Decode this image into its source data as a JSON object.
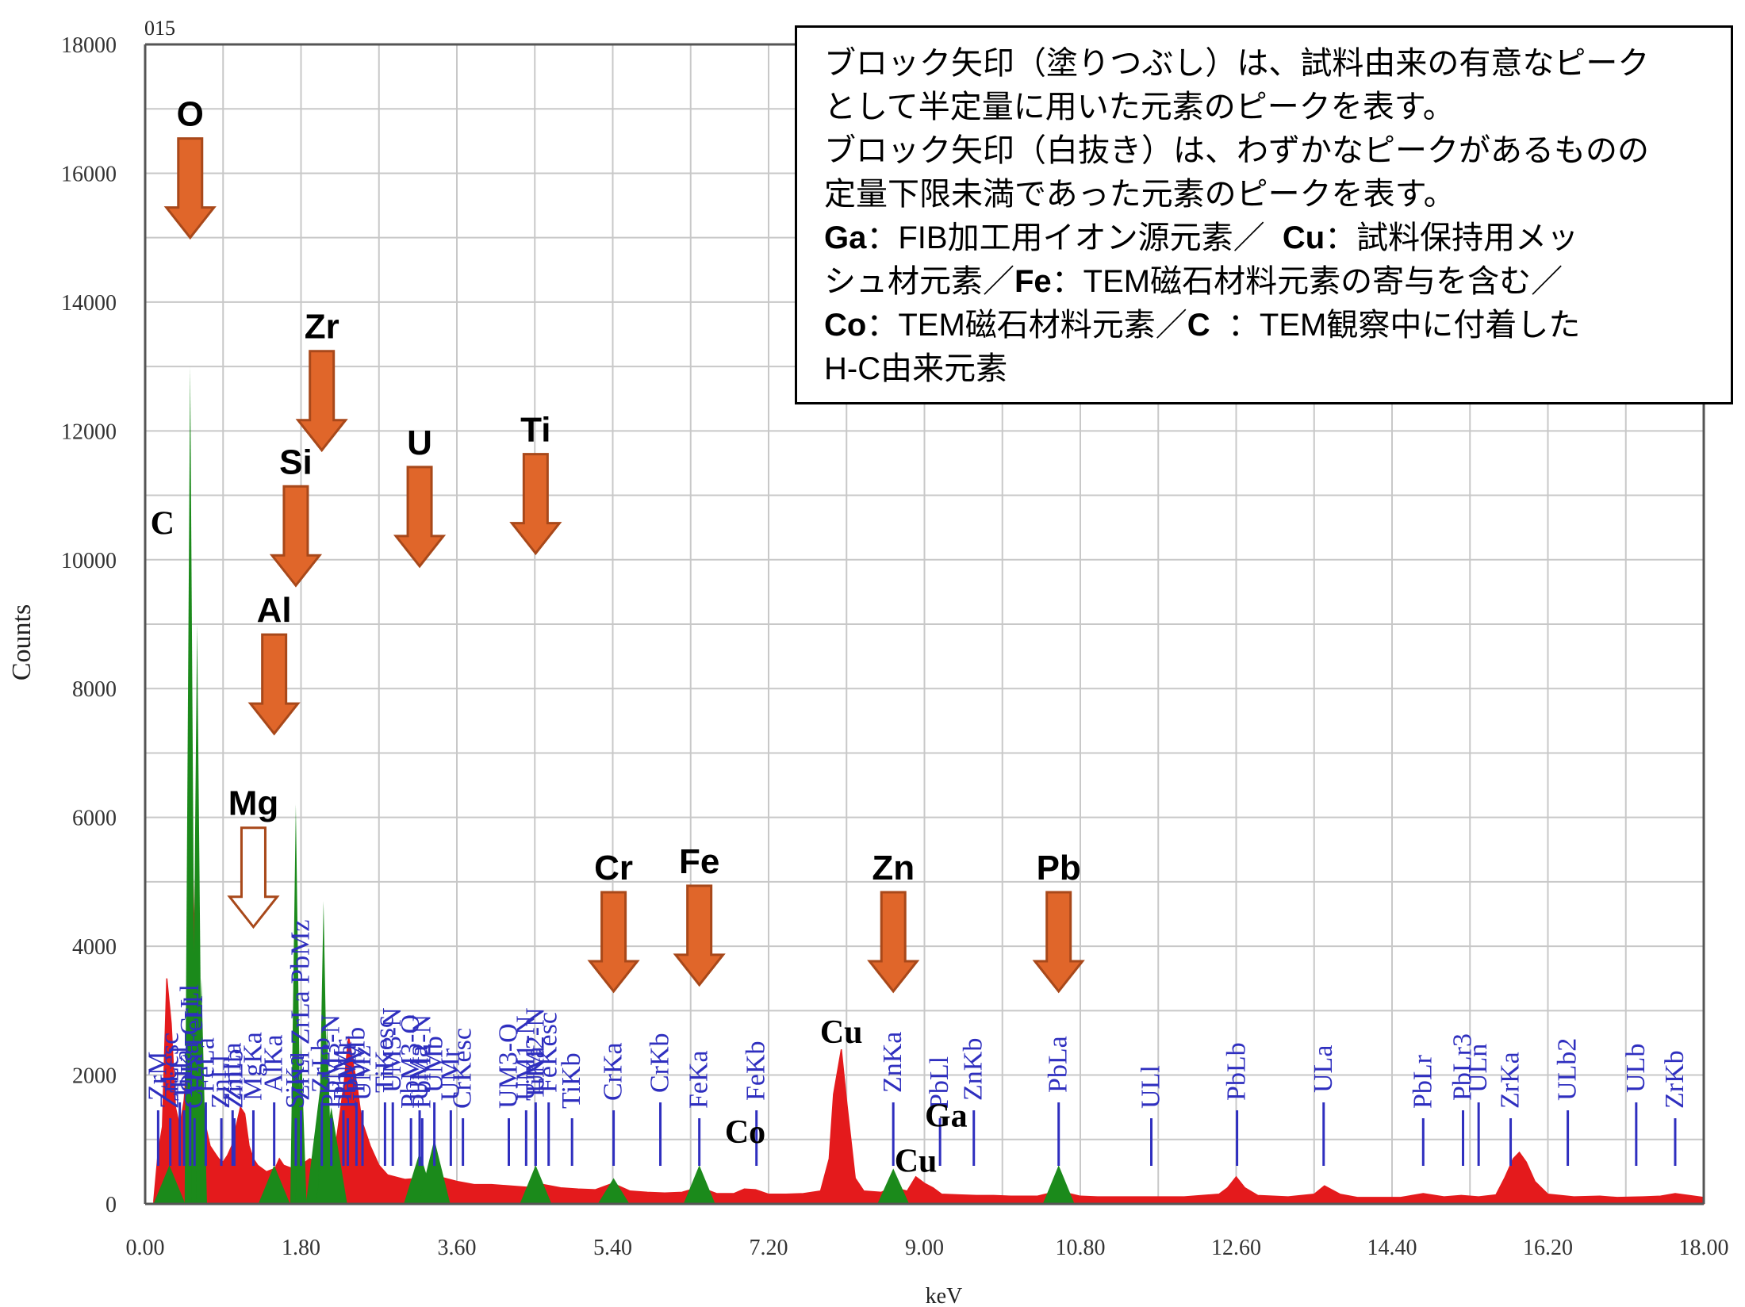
{
  "chart_data": {
    "type": "area",
    "corner_label": "015",
    "xlabel": "keV",
    "ylabel": "Counts",
    "xlim": [
      0,
      18
    ],
    "ylim": [
      0,
      18000
    ],
    "x_ticks": [
      "0.00",
      "1.80",
      "3.60",
      "5.40",
      "7.20",
      "9.00",
      "10.80",
      "12.60",
      "14.40",
      "16.20",
      "18.00"
    ],
    "y_ticks": [
      "0",
      "2000",
      "4000",
      "6000",
      "8000",
      "10000",
      "12000",
      "14000",
      "16000",
      "18000"
    ],
    "grid": true,
    "spectrum": [
      [
        0.1,
        50
      ],
      [
        0.15,
        800
      ],
      [
        0.2,
        1200
      ],
      [
        0.25,
        3500
      ],
      [
        0.3,
        2800
      ],
      [
        0.35,
        1500
      ],
      [
        0.4,
        1200
      ],
      [
        0.45,
        1600
      ],
      [
        0.5,
        2500
      ],
      [
        0.52,
        4800
      ],
      [
        0.55,
        5200
      ],
      [
        0.6,
        2200
      ],
      [
        0.65,
        1600
      ],
      [
        0.7,
        1200
      ],
      [
        0.75,
        900
      ],
      [
        0.8,
        800
      ],
      [
        0.85,
        700
      ],
      [
        0.9,
        650
      ],
      [
        0.95,
        750
      ],
      [
        1.0,
        900
      ],
      [
        1.05,
        1200
      ],
      [
        1.1,
        1500
      ],
      [
        1.15,
        1400
      ],
      [
        1.2,
        900
      ],
      [
        1.25,
        700
      ],
      [
        1.3,
        600
      ],
      [
        1.4,
        500
      ],
      [
        1.5,
        550
      ],
      [
        1.55,
        700
      ],
      [
        1.6,
        600
      ],
      [
        1.7,
        550
      ],
      [
        1.8,
        600
      ],
      [
        1.9,
        700
      ],
      [
        2.0,
        650
      ],
      [
        2.1,
        600
      ],
      [
        2.2,
        900
      ],
      [
        2.3,
        1900
      ],
      [
        2.35,
        2600
      ],
      [
        2.4,
        2200
      ],
      [
        2.45,
        1800
      ],
      [
        2.5,
        1300
      ],
      [
        2.6,
        900
      ],
      [
        2.7,
        600
      ],
      [
        2.8,
        450
      ],
      [
        3.0,
        380
      ],
      [
        3.2,
        400
      ],
      [
        3.4,
        420
      ],
      [
        3.6,
        350
      ],
      [
        3.8,
        300
      ],
      [
        4.0,
        300
      ],
      [
        4.2,
        280
      ],
      [
        4.4,
        260
      ],
      [
        4.6,
        300
      ],
      [
        4.8,
        250
      ],
      [
        5.0,
        230
      ],
      [
        5.2,
        220
      ],
      [
        5.4,
        320
      ],
      [
        5.6,
        200
      ],
      [
        5.8,
        180
      ],
      [
        6.0,
        170
      ],
      [
        6.2,
        180
      ],
      [
        6.4,
        260
      ],
      [
        6.6,
        160
      ],
      [
        6.8,
        160
      ],
      [
        6.92,
        230
      ],
      [
        7.05,
        220
      ],
      [
        7.2,
        150
      ],
      [
        7.4,
        150
      ],
      [
        7.6,
        160
      ],
      [
        7.8,
        200
      ],
      [
        7.9,
        700
      ],
      [
        7.95,
        1700
      ],
      [
        8.04,
        2400
      ],
      [
        8.1,
        1600
      ],
      [
        8.2,
        400
      ],
      [
        8.3,
        200
      ],
      [
        8.5,
        180
      ],
      [
        8.63,
        260
      ],
      [
        8.8,
        200
      ],
      [
        8.9,
        420
      ],
      [
        9.0,
        320
      ],
      [
        9.1,
        250
      ],
      [
        9.2,
        150
      ],
      [
        9.4,
        140
      ],
      [
        9.6,
        130
      ],
      [
        9.8,
        130
      ],
      [
        10.0,
        120
      ],
      [
        10.3,
        120
      ],
      [
        10.55,
        200
      ],
      [
        10.8,
        120
      ],
      [
        11.0,
        110
      ],
      [
        11.5,
        110
      ],
      [
        12.0,
        110
      ],
      [
        12.4,
        150
      ],
      [
        12.5,
        250
      ],
      [
        12.6,
        420
      ],
      [
        12.7,
        250
      ],
      [
        12.85,
        130
      ],
      [
        13.2,
        110
      ],
      [
        13.5,
        150
      ],
      [
        13.62,
        280
      ],
      [
        13.8,
        150
      ],
      [
        14.0,
        100
      ],
      [
        14.5,
        100
      ],
      [
        14.76,
        160
      ],
      [
        15.0,
        110
      ],
      [
        15.2,
        130
      ],
      [
        15.4,
        110
      ],
      [
        15.6,
        140
      ],
      [
        15.7,
        400
      ],
      [
        15.8,
        700
      ],
      [
        15.87,
        800
      ],
      [
        15.95,
        650
      ],
      [
        16.05,
        350
      ],
      [
        16.2,
        150
      ],
      [
        16.5,
        110
      ],
      [
        16.8,
        120
      ],
      [
        17.0,
        100
      ],
      [
        17.3,
        110
      ],
      [
        17.5,
        120
      ],
      [
        17.67,
        160
      ],
      [
        18.0,
        100
      ]
    ],
    "quantified_peaks": [
      {
        "x": 0.52,
        "y": 13000
      },
      {
        "x": 0.6,
        "y": 9000
      },
      {
        "x": 0.65,
        "y": 3500
      },
      {
        "x": 1.74,
        "y": 6200
      },
      {
        "x": 1.8,
        "y": 2500
      },
      {
        "x": 2.04,
        "y": 2000
      },
      {
        "x": 2.06,
        "y": 4700
      },
      {
        "x": 2.1,
        "y": 2800
      },
      {
        "x": 2.15,
        "y": 1500
      },
      {
        "x": 3.17,
        "y": 800
      },
      {
        "x": 3.34,
        "y": 1000
      },
      {
        "x": 4.51,
        "y": 600
      },
      {
        "x": 5.41,
        "y": 400
      },
      {
        "x": 6.4,
        "y": 600
      },
      {
        "x": 8.64,
        "y": 550
      },
      {
        "x": 10.55,
        "y": 600
      },
      {
        "x": 1.49,
        "y": 600
      },
      {
        "x": 0.28,
        "y": 600
      }
    ],
    "peak_labels": [
      {
        "text": "ZrLesc",
        "x": 0.29
      },
      {
        "text": "ZrM",
        "x": 0.15
      },
      {
        "text": "OKa CrLl",
        "x": 0.52
      },
      {
        "text": "ZnLl",
        "x": 0.88
      },
      {
        "text": "ZnLa",
        "x": 1.01
      },
      {
        "text": "FeLa",
        "x": 0.7
      },
      {
        "text": "CrLa FeLl",
        "x": 0.57
      },
      {
        "text": "TiLa",
        "x": 0.45
      },
      {
        "text": "TiLl",
        "x": 0.4
      },
      {
        "text": "ZnLb",
        "x": 1.03
      },
      {
        "text": "MgKa",
        "x": 1.25
      },
      {
        "text": "AlKa",
        "x": 1.49
      },
      {
        "text": "SiKa",
        "x": 1.74
      },
      {
        "text": "ZrLl ZrLa PbMz",
        "x": 1.8
      },
      {
        "text": "ZrLb",
        "x": 2.04
      },
      {
        "text": "PbM3-N",
        "x": 2.15
      },
      {
        "text": "PbMr",
        "x": 2.29
      },
      {
        "text": "PbMb",
        "x": 2.44
      },
      {
        "text": "PbMa",
        "x": 2.34
      },
      {
        "text": "UMz",
        "x": 2.51
      },
      {
        "text": "UM3-N",
        "x": 2.86
      },
      {
        "text": "PbM2-N",
        "x": 3.2
      },
      {
        "text": "UMa",
        "x": 3.17
      },
      {
        "text": "UMb",
        "x": 3.34
      },
      {
        "text": "PbM3-O",
        "x": 3.07
      },
      {
        "text": "UMr",
        "x": 3.53
      },
      {
        "text": "TiKesc",
        "x": 2.77
      },
      {
        "text": "CrKesc",
        "x": 3.67
      },
      {
        "text": "UM1-N",
        "x": 4.4
      },
      {
        "text": "UM2-N",
        "x": 4.51
      },
      {
        "text": "UM3-O",
        "x": 4.2
      },
      {
        "text": "TiKa",
        "x": 4.51
      },
      {
        "text": "FeKesc",
        "x": 4.66
      },
      {
        "text": "TiKb",
        "x": 4.93
      },
      {
        "text": "CrKa",
        "x": 5.41
      },
      {
        "text": "CrKb",
        "x": 5.95
      },
      {
        "text": "FeKa",
        "x": 6.4
      },
      {
        "text": "FeKb",
        "x": 7.06
      },
      {
        "text": "ZnKa",
        "x": 8.64
      },
      {
        "text": "PbLl",
        "x": 9.18
      },
      {
        "text": "ZnKb",
        "x": 9.57
      },
      {
        "text": "PbLa",
        "x": 10.55
      },
      {
        "text": "ULl",
        "x": 11.62
      },
      {
        "text": "PbLb",
        "x": 12.61
      },
      {
        "text": "ULa",
        "x": 13.61
      },
      {
        "text": "PbLr",
        "x": 14.76
      },
      {
        "text": "PbLr3",
        "x": 15.22
      },
      {
        "text": "ULn",
        "x": 15.4
      },
      {
        "text": "ZrKa",
        "x": 15.77
      },
      {
        "text": "ULb2",
        "x": 16.43
      },
      {
        "text": "ULb",
        "x": 17.22
      },
      {
        "text": "ZrKb",
        "x": 17.67
      }
    ],
    "element_arrows": [
      {
        "label": "O",
        "x": 0.52,
        "filled": true
      },
      {
        "label": "Zr",
        "x": 2.04,
        "filled": true
      },
      {
        "label": "Si",
        "x": 1.74,
        "filled": true
      },
      {
        "label": "U",
        "x": 3.17,
        "filled": true
      },
      {
        "label": "Ti",
        "x": 4.51,
        "filled": true
      },
      {
        "label": "Al",
        "x": 1.49,
        "filled": true
      },
      {
        "label": "Mg",
        "x": 1.25,
        "filled": false
      },
      {
        "label": "Cr",
        "x": 5.41,
        "filled": true
      },
      {
        "label": "Fe",
        "x": 6.4,
        "filled": true
      },
      {
        "label": "Zn",
        "x": 8.64,
        "filled": true
      },
      {
        "label": "Pb",
        "x": 10.55,
        "filled": true
      }
    ],
    "other_elements": [
      {
        "label": "C",
        "x": 0.2
      },
      {
        "label": "Cu",
        "x": 8.04
      },
      {
        "label": "Co",
        "x": 6.93
      },
      {
        "label": "Ga",
        "x": 9.25
      },
      {
        "label": "Cu",
        "x": 8.9
      }
    ],
    "colors": {
      "background_spectrum": "#e41a1c",
      "quantified": "#1b8a1b",
      "peak_label": "#2f2fbf",
      "arrow_fill": "#e0662a",
      "arrow_edge": "#a8481a"
    }
  },
  "legend_box": {
    "line1": "ブロック矢印（塗りつぶし）は、試料由来の有意なピーク",
    "line2": "として半定量に用いた元素のピークを表す。",
    "line3": "ブロック矢印（白抜き）は、わずかなピークがあるものの",
    "line4": "定量下限未満であった元素のピークを表す。",
    "ga_label": "Ga",
    "ga_text": "：FIB加工用イオン源元素／",
    "cu_label": "Cu",
    "cu_text": "：試料保持用メッ",
    "line6": "シュ材元素／",
    "fe_label": "Fe",
    "fe_text": "：TEM磁石材料元素の寄与を含む／",
    "co_label": "Co",
    "co_text": "：TEM磁石材料元素／",
    "c_label": "C",
    "c_text": "：TEM観察中に付着した",
    "line8": "H-C由来元素"
  }
}
